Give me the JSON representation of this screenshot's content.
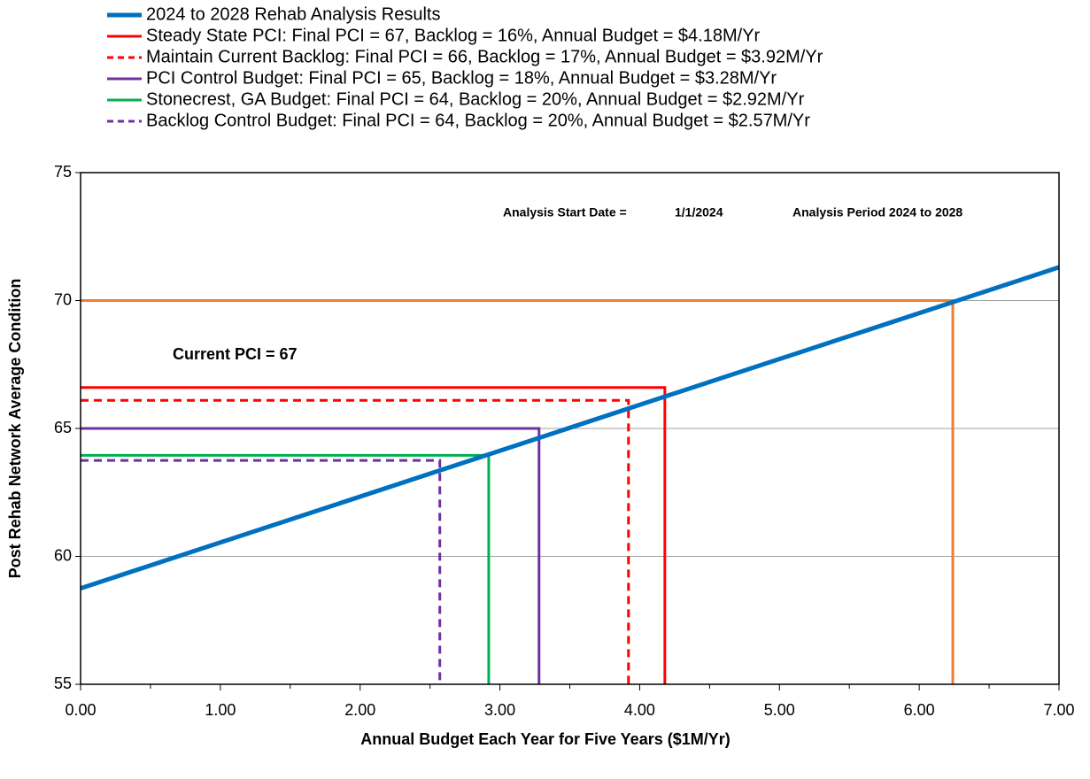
{
  "chart_data": {
    "type": "line",
    "xlabel": "Annual Budget Each Year for Five Years ($1M/Yr)",
    "ylabel": "Post Rehab Network Average Condition",
    "xlim": [
      0,
      7
    ],
    "ylim": [
      55,
      75
    ],
    "xticks": [
      {
        "value": 0,
        "label": "0.00"
      },
      {
        "value": 1,
        "label": "1.00"
      },
      {
        "value": 2,
        "label": "2.00"
      },
      {
        "value": 3,
        "label": "3.00"
      },
      {
        "value": 4,
        "label": "4.00"
      },
      {
        "value": 5,
        "label": "5.00"
      },
      {
        "value": 6,
        "label": "6.00"
      },
      {
        "value": 7,
        "label": "7.00"
      }
    ],
    "xminorticks": [
      0.5,
      1.5,
      2.5,
      3.5,
      4.5,
      5.5,
      6.5
    ],
    "yticks": [
      55,
      60,
      65,
      70,
      75
    ],
    "grid": true,
    "series": [
      {
        "name": "2024 to 2028 Rehab Analysis Results",
        "color": "#0070c0",
        "dash": false,
        "x": [
          0,
          7
        ],
        "values": [
          58.75,
          71.3
        ]
      },
      {
        "name": "Steady State PCI: Final PCI = 67, Backlog = 16%, Annual Budget = $4.18M/Yr",
        "color": "#ff0000",
        "dash": false,
        "x": [
          0,
          4.18,
          4.18
        ],
        "values": [
          66.6,
          66.6,
          55
        ]
      },
      {
        "name": "Maintain Current Backlog: Final PCI = 66, Backlog = 17%, Annual Budget = $3.92M/Yr",
        "color": "#ff0000",
        "dash": true,
        "x": [
          0,
          3.92,
          3.92
        ],
        "values": [
          66.1,
          66.1,
          55
        ]
      },
      {
        "name": "PCI Control Budget: Final PCI = 65, Backlog = 18%, Annual Budget = $3.28M/Yr",
        "color": "#7030a0",
        "dash": false,
        "x": [
          0,
          3.28,
          3.28
        ],
        "values": [
          65,
          65,
          55
        ]
      },
      {
        "name": "Stonecrest, GA Budget: Final PCI = 64, Backlog = 20%, Annual Budget = $2.92M/Yr",
        "color": "#00b050",
        "dash": false,
        "x": [
          0,
          2.92,
          2.92
        ],
        "values": [
          63.95,
          63.95,
          55
        ]
      },
      {
        "name": "Backlog Control Budget: Final PCI = 64, Backlog = 20%, Annual Budget = $2.57M/Yr",
        "color": "#7030a0",
        "dash": true,
        "x": [
          0,
          2.57,
          2.57
        ],
        "values": [
          63.75,
          63.75,
          55
        ]
      },
      {
        "color": "#ed7d31",
        "dash": false,
        "x": [
          0,
          6.24,
          6.24
        ],
        "values": [
          70,
          70,
          55
        ]
      }
    ],
    "annotations": [
      "Current PCI = 67",
      "Analysis Start Date =",
      "1/1/2024",
      "Analysis Period 2024 to 2028"
    ]
  }
}
